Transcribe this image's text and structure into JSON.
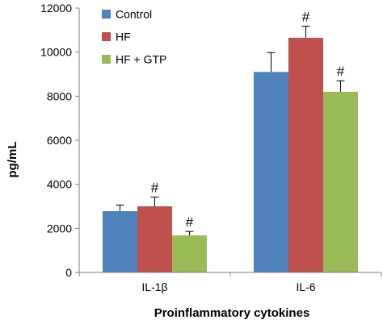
{
  "chart_data": {
    "type": "bar",
    "title": "",
    "xlabel": "Proinflammatory cytokines",
    "ylabel": "pg/mL",
    "categories": [
      "IL-1β",
      "IL-6"
    ],
    "ylim": [
      0,
      12000
    ],
    "yticks": [
      0,
      2000,
      4000,
      6000,
      8000,
      10000,
      12000
    ],
    "grid": false,
    "legend_position": "top-left",
    "series": [
      {
        "name": "Control",
        "color": "#4f81bd",
        "values": [
          2780,
          9100
        ],
        "errors": [
          280,
          880
        ],
        "annotations": [
          "",
          ""
        ]
      },
      {
        "name": "HF",
        "color": "#c0504d",
        "values": [
          3000,
          10650
        ],
        "errors": [
          420,
          530
        ],
        "annotations": [
          "#",
          "#"
        ]
      },
      {
        "name": "HF + GTP",
        "color": "#9bbb59",
        "values": [
          1680,
          8200
        ],
        "errors": [
          180,
          500
        ],
        "annotations": [
          "#",
          "#"
        ]
      }
    ]
  }
}
